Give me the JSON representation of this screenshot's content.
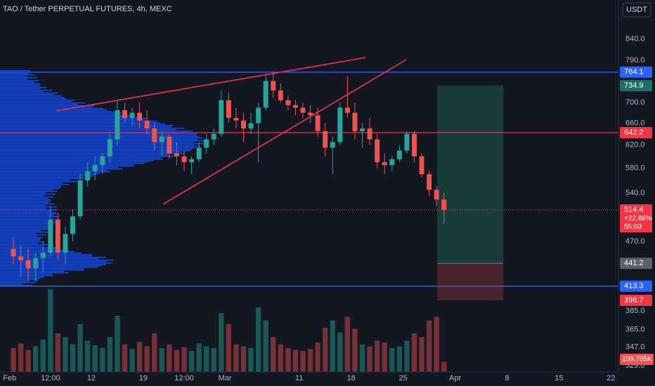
{
  "chart_data": {
    "type": "candlestick",
    "title": "TAO / Tether PERPETUAL FUTURES, 4h, MEXC",
    "currency": "USDT",
    "log_scale": true,
    "up_color": "#26a69a",
    "down_color": "#ef5350",
    "ylim": [
      323,
      940
    ],
    "yticks": [
      {
        "value": 840,
        "label": "840.0"
      },
      {
        "value": 790,
        "label": "790.0"
      },
      {
        "value": 700,
        "label": "700.0"
      },
      {
        "value": 660,
        "label": "660.0"
      },
      {
        "value": 620,
        "label": "620.0"
      },
      {
        "value": 580,
        "label": "580.0"
      },
      {
        "value": 540,
        "label": "540.0"
      },
      {
        "value": 470,
        "label": "470.0"
      },
      {
        "value": 385,
        "label": "385.0"
      },
      {
        "value": 365,
        "label": "365.0"
      },
      {
        "value": 347,
        "label": "347.0"
      },
      {
        "value": 329,
        "label": "329.0"
      }
    ],
    "xlim": [
      -0.3,
      83
    ],
    "xticks": [
      {
        "value": 1,
        "label": "Feb"
      },
      {
        "value": 6.5,
        "label": "12:00"
      },
      {
        "value": 12,
        "label": "12"
      },
      {
        "value": 19,
        "label": "19"
      },
      {
        "value": 24.5,
        "label": "12:00"
      },
      {
        "value": 30,
        "label": "Mar"
      },
      {
        "value": 40,
        "label": "11"
      },
      {
        "value": 47,
        "label": "18"
      },
      {
        "value": 54,
        "label": "25"
      },
      {
        "value": 61,
        "label": "Apr"
      },
      {
        "value": 68,
        "label": "8"
      },
      {
        "value": 75,
        "label": "15"
      },
      {
        "value": 82,
        "label": "22"
      }
    ],
    "x": [
      1,
      2,
      3,
      4,
      5,
      6,
      7,
      8,
      9,
      10,
      11,
      12,
      13,
      14,
      15,
      16,
      17,
      18,
      19,
      20,
      21,
      22,
      23,
      24,
      25,
      26,
      27,
      28,
      29,
      30,
      31,
      32,
      33,
      34,
      35,
      36,
      37,
      38,
      39,
      40,
      41,
      42,
      43,
      44,
      45,
      46,
      47,
      48,
      49,
      50,
      51,
      52,
      53,
      54,
      55,
      56,
      57,
      58,
      59
    ],
    "open": [
      460,
      450,
      445,
      435,
      448,
      455,
      500,
      455,
      480,
      505,
      560,
      575,
      585,
      600,
      630,
      685,
      670,
      680,
      665,
      650,
      625,
      635,
      605,
      600,
      590,
      595,
      615,
      630,
      640,
      705,
      670,
      665,
      650,
      660,
      690,
      745,
      725,
      705,
      695,
      690,
      680,
      675,
      645,
      615,
      625,
      690,
      680,
      645,
      650,
      630,
      590,
      585,
      595,
      610,
      640,
      600,
      570,
      545,
      530
    ],
    "high": [
      475,
      465,
      460,
      455,
      470,
      520,
      510,
      490,
      515,
      570,
      590,
      600,
      605,
      640,
      705,
      700,
      690,
      700,
      685,
      660,
      645,
      640,
      625,
      610,
      600,
      625,
      640,
      650,
      725,
      720,
      690,
      680,
      680,
      700,
      760,
      765,
      740,
      715,
      705,
      700,
      695,
      690,
      660,
      635,
      700,
      755,
      700,
      660,
      670,
      640,
      605,
      600,
      620,
      645,
      645,
      605,
      575,
      550,
      540
    ],
    "low": [
      440,
      425,
      420,
      418,
      430,
      450,
      445,
      440,
      470,
      500,
      550,
      560,
      570,
      590,
      620,
      660,
      655,
      650,
      640,
      610,
      600,
      595,
      585,
      575,
      570,
      590,
      605,
      620,
      635,
      660,
      650,
      625,
      640,
      590,
      685,
      710,
      700,
      685,
      675,
      670,
      660,
      635,
      600,
      570,
      620,
      670,
      630,
      615,
      620,
      580,
      570,
      575,
      590,
      605,
      590,
      565,
      535,
      520,
      495
    ],
    "close": [
      450,
      445,
      435,
      448,
      455,
      500,
      455,
      480,
      505,
      560,
      575,
      585,
      600,
      630,
      685,
      670,
      680,
      665,
      650,
      625,
      635,
      605,
      600,
      590,
      595,
      615,
      630,
      640,
      705,
      670,
      665,
      650,
      660,
      690,
      745,
      725,
      705,
      695,
      690,
      680,
      675,
      645,
      615,
      625,
      690,
      680,
      645,
      650,
      630,
      590,
      585,
      595,
      610,
      640,
      600,
      570,
      545,
      530,
      514.4
    ],
    "volume": {
      "values": [
        260,
        310,
        240,
        280,
        350,
        900,
        420,
        380,
        300,
        520,
        340,
        290,
        260,
        380,
        610,
        300,
        250,
        330,
        280,
        420,
        260,
        300,
        240,
        270,
        230,
        310,
        280,
        260,
        640,
        520,
        300,
        280,
        260,
        700,
        560,
        380,
        300,
        260,
        240,
        230,
        250,
        320,
        480,
        560,
        430,
        600,
        470,
        300,
        280,
        340,
        320,
        260,
        280,
        340,
        420,
        380,
        560,
        600,
        109.705
      ],
      "last_label": "109.705K"
    },
    "price_tags": [
      {
        "value": 764.1,
        "color": "#2962ff",
        "line": true
      },
      {
        "value": 734.9,
        "color": "#1e6f68",
        "line": false
      },
      {
        "value": 642.2,
        "color": "#f23645",
        "line": true
      },
      {
        "value": 514.4,
        "color": "#f23645",
        "line": false,
        "extra": [
          "+22.88%",
          "55:03"
        ]
      },
      {
        "value": 441.2,
        "color": "#5d606b",
        "line": false
      },
      {
        "value": 413.3,
        "color": "#2962ff",
        "line": true
      },
      {
        "value": 396.7,
        "color": "#f23645",
        "line": false
      }
    ]
  }
}
